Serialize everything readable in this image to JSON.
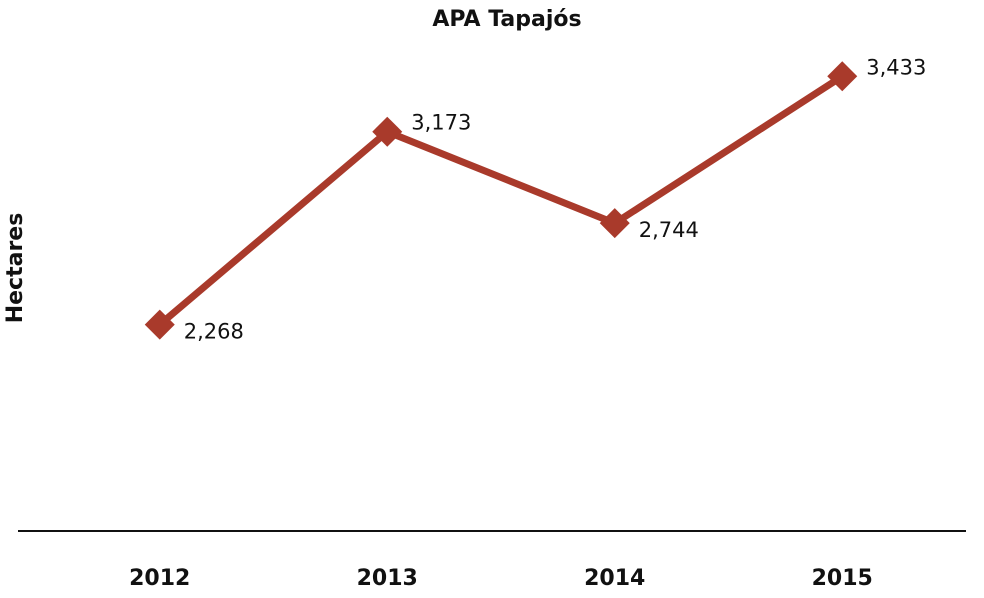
{
  "chart_data": {
    "type": "line",
    "title": "APA Tapajós",
    "xlabel": "",
    "ylabel": "Hectares",
    "categories": [
      "2012",
      "2013",
      "2014",
      "2015"
    ],
    "series": [
      {
        "values": [
          2268,
          3173,
          2744,
          3433
        ],
        "labels": [
          "2,268",
          "3,173",
          "2,744",
          "3,433"
        ],
        "color": "#a93a2b",
        "marker": "diamond"
      }
    ],
    "ylim": [
      1300,
      3650
    ],
    "grid": false,
    "legend": "none"
  }
}
